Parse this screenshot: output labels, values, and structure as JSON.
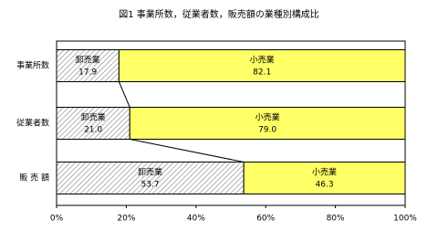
{
  "chart_data": {
    "type": "stacked_bar_horizontal",
    "title": "図1  事業所数，従業者数，販売額の業種別構成比",
    "categories": [
      "事業所数",
      "従業者数",
      "販 売 額"
    ],
    "series": [
      {
        "name": "卸売業",
        "color": "#808080",
        "hatch": true,
        "values": [
          17.9,
          21,
          53.7
        ],
        "value_labels": [
          "17.9",
          "21.0",
          "53.7"
        ]
      },
      {
        "name": "小売業",
        "color": "#ffff66",
        "hatch": false,
        "values": [
          82.1,
          79,
          46.3
        ],
        "value_labels": [
          "82.1",
          "79.0",
          "46.3"
        ]
      }
    ],
    "xlim": [
      0,
      100
    ],
    "xticks": [
      {
        "value": 0,
        "label": "0%"
      },
      {
        "value": 20,
        "label": "20%"
      },
      {
        "value": 40,
        "label": "40%"
      },
      {
        "value": 60,
        "label": "60%"
      },
      {
        "value": 80,
        "label": "80%"
      },
      {
        "value": 100,
        "label": "100%"
      }
    ],
    "connectors": true
  }
}
